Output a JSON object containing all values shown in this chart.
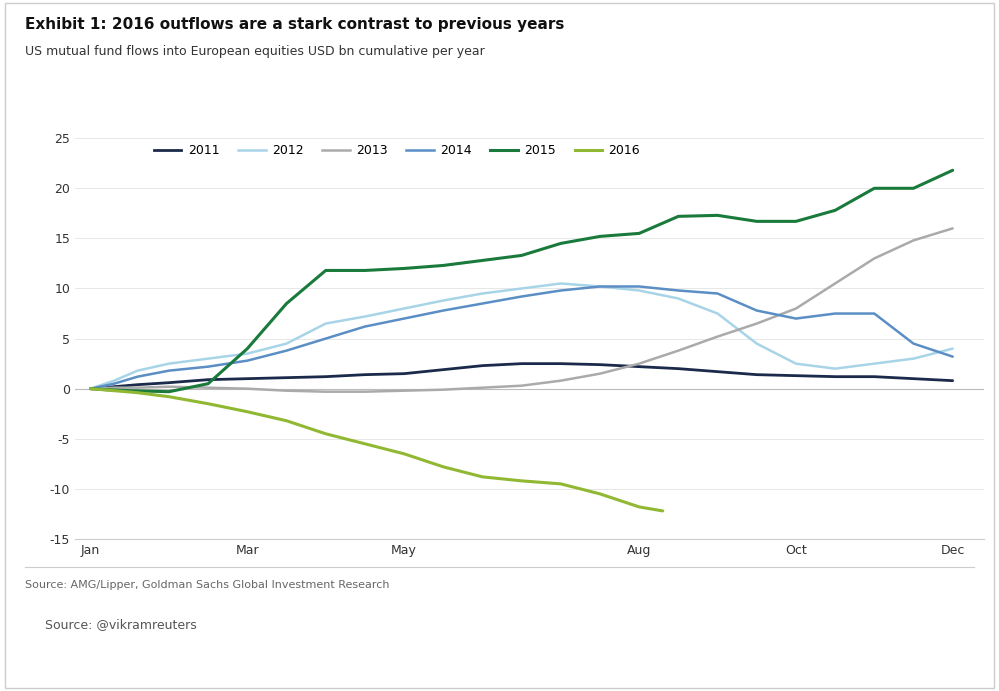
{
  "title": "Exhibit 1: 2016 outflows are a stark contrast to previous years",
  "subtitle": "US mutual fund flows into European equities USD bn cumulative per year",
  "source1": "Source: AMG/Lipper, Goldman Sachs Global Investment Research",
  "source2": "Source: @vikramreuters",
  "ylim": [
    -15,
    25
  ],
  "yticks": [
    -15,
    -10,
    -5,
    0,
    5,
    10,
    15,
    20,
    25
  ],
  "xtick_positions": [
    0,
    2,
    4,
    7,
    9,
    11
  ],
  "xtick_labels": [
    "Jan",
    "Mar",
    "May",
    "Aug",
    "Oct",
    "Dec"
  ],
  "xlim": [
    -0.2,
    11.4
  ],
  "colors": {
    "2011": "#1b2a4a",
    "2012": "#a8d4e8",
    "2013": "#aaaaaa",
    "2014": "#5b8ec4",
    "2015": "#1a7a3c",
    "2016": "#90b832"
  },
  "linewidths": {
    "2011": 2.0,
    "2012": 1.8,
    "2013": 1.8,
    "2014": 1.8,
    "2015": 2.2,
    "2016": 2.2
  },
  "series_x": {
    "2011": [
      0,
      0.3,
      0.6,
      1.0,
      1.5,
      2.0,
      2.5,
      3.0,
      3.5,
      4.0,
      4.5,
      5.0,
      5.5,
      6.0,
      6.5,
      7.0,
      7.5,
      8.0,
      8.5,
      9.0,
      9.5,
      10.0,
      10.5,
      11.0
    ],
    "2012": [
      0,
      0.3,
      0.6,
      1.0,
      1.5,
      2.0,
      2.5,
      3.0,
      3.5,
      4.0,
      4.5,
      5.0,
      5.5,
      6.0,
      6.5,
      7.0,
      7.5,
      8.0,
      8.5,
      9.0,
      9.5,
      10.0,
      10.5,
      11.0
    ],
    "2013": [
      0,
      0.3,
      0.6,
      1.0,
      1.5,
      2.0,
      2.5,
      3.0,
      3.5,
      4.0,
      4.5,
      5.0,
      5.5,
      6.0,
      6.5,
      7.0,
      7.5,
      8.0,
      8.5,
      9.0,
      9.5,
      10.0,
      10.5,
      11.0
    ],
    "2014": [
      0,
      0.3,
      0.6,
      1.0,
      1.5,
      2.0,
      2.5,
      3.0,
      3.5,
      4.0,
      4.5,
      5.0,
      5.5,
      6.0,
      6.5,
      7.0,
      7.5,
      8.0,
      8.5,
      9.0,
      9.5,
      10.0,
      10.5,
      11.0
    ],
    "2015": [
      0,
      0.2,
      0.5,
      1.0,
      1.5,
      2.0,
      2.5,
      3.0,
      3.5,
      4.0,
      4.5,
      5.0,
      5.5,
      6.0,
      6.5,
      7.0,
      7.5,
      8.0,
      8.5,
      9.0,
      9.5,
      10.0,
      10.5,
      11.0
    ],
    "2016": [
      0,
      0.3,
      0.6,
      1.0,
      1.5,
      2.0,
      2.5,
      3.0,
      3.5,
      4.0,
      4.5,
      5.0,
      5.5,
      6.0,
      6.5,
      7.0,
      7.3
    ]
  },
  "series_y": {
    "2011": [
      0,
      0.2,
      0.4,
      0.6,
      0.9,
      1.0,
      1.1,
      1.2,
      1.4,
      1.5,
      1.9,
      2.3,
      2.5,
      2.5,
      2.4,
      2.2,
      2.0,
      1.7,
      1.4,
      1.3,
      1.2,
      1.2,
      1.0,
      0.8
    ],
    "2012": [
      0,
      0.8,
      1.8,
      2.5,
      3.0,
      3.5,
      4.5,
      6.5,
      7.2,
      8.0,
      8.8,
      9.5,
      10.0,
      10.5,
      10.2,
      9.8,
      9.0,
      7.5,
      4.5,
      2.5,
      2.0,
      2.5,
      3.0,
      4.0
    ],
    "2013": [
      0,
      0.1,
      0.1,
      0.2,
      0.1,
      0.0,
      -0.2,
      -0.3,
      -0.3,
      -0.2,
      -0.1,
      0.1,
      0.3,
      0.8,
      1.5,
      2.5,
      3.8,
      5.2,
      6.5,
      8.0,
      10.5,
      13.0,
      14.8,
      16.0
    ],
    "2014": [
      0,
      0.5,
      1.2,
      1.8,
      2.2,
      2.8,
      3.8,
      5.0,
      6.2,
      7.0,
      7.8,
      8.5,
      9.2,
      9.8,
      10.2,
      10.2,
      9.8,
      9.5,
      7.8,
      7.0,
      7.5,
      7.5,
      4.5,
      3.2
    ],
    "2015": [
      0,
      -0.1,
      -0.2,
      -0.3,
      0.5,
      4.0,
      8.5,
      11.8,
      11.8,
      12.0,
      12.3,
      12.8,
      13.3,
      14.5,
      15.2,
      15.5,
      17.2,
      17.3,
      16.7,
      16.7,
      17.8,
      20.0,
      20.0,
      21.8
    ],
    "2016": [
      0,
      -0.2,
      -0.4,
      -0.8,
      -1.5,
      -2.3,
      -3.2,
      -4.5,
      -5.5,
      -6.5,
      -7.8,
      -8.8,
      -9.2,
      -9.5,
      -10.5,
      -11.8,
      -12.2
    ]
  }
}
